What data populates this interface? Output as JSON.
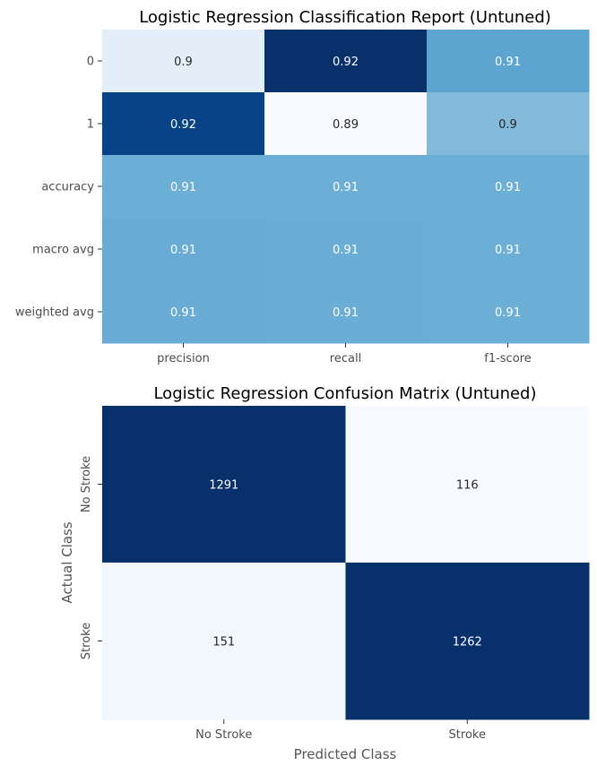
{
  "chart_data": [
    {
      "type": "heatmap",
      "title": "Logistic Regression Classification Report (Untuned)",
      "rows": [
        "0",
        "1",
        "accuracy",
        "macro avg",
        "weighted avg"
      ],
      "columns": [
        "precision",
        "recall",
        "f1-score"
      ],
      "values": [
        [
          0.9,
          0.92,
          0.91
        ],
        [
          0.92,
          0.89,
          0.9
        ],
        [
          0.91,
          0.91,
          0.91
        ],
        [
          0.91,
          0.91,
          0.91
        ],
        [
          0.91,
          0.91,
          0.91
        ]
      ],
      "value_labels": [
        [
          "0.9",
          "0.92",
          "0.91"
        ],
        [
          "0.92",
          "0.89",
          "0.9"
        ],
        [
          "0.91",
          "0.91",
          "0.91"
        ],
        [
          "0.91",
          "0.91",
          "0.91"
        ],
        [
          "0.91",
          "0.91",
          "0.91"
        ]
      ],
      "cells": [
        {
          "row": 0,
          "col": 0,
          "label": "0.9",
          "fill": "#e3eef9",
          "text": "#262626"
        },
        {
          "row": 0,
          "col": 1,
          "label": "0.92",
          "fill": "#08306b",
          "text": "#ffffff"
        },
        {
          "row": 0,
          "col": 2,
          "label": "0.91",
          "fill": "#5da5d1",
          "text": "#ffffff"
        },
        {
          "row": 1,
          "col": 0,
          "label": "0.92",
          "fill": "#084387",
          "text": "#ffffff"
        },
        {
          "row": 1,
          "col": 1,
          "label": "0.89",
          "fill": "#f7fbff",
          "text": "#262626"
        },
        {
          "row": 1,
          "col": 2,
          "label": "0.9",
          "fill": "#83b9da",
          "text": "#262626"
        },
        {
          "row": 2,
          "col": 0,
          "label": "0.91",
          "fill": "#6baed6",
          "text": "#ffffff"
        },
        {
          "row": 2,
          "col": 1,
          "label": "0.91",
          "fill": "#6baed6",
          "text": "#ffffff"
        },
        {
          "row": 2,
          "col": 2,
          "label": "0.91",
          "fill": "#6baed6",
          "text": "#ffffff"
        },
        {
          "row": 3,
          "col": 0,
          "label": "0.91",
          "fill": "#68acd5",
          "text": "#ffffff"
        },
        {
          "row": 3,
          "col": 1,
          "label": "0.91",
          "fill": "#6aadd5",
          "text": "#ffffff"
        },
        {
          "row": 3,
          "col": 2,
          "label": "0.91",
          "fill": "#6baed6",
          "text": "#ffffff"
        },
        {
          "row": 4,
          "col": 0,
          "label": "0.91",
          "fill": "#68acd5",
          "text": "#ffffff"
        },
        {
          "row": 4,
          "col": 1,
          "label": "0.91",
          "fill": "#6aadd5",
          "text": "#ffffff"
        },
        {
          "row": 4,
          "col": 2,
          "label": "0.91",
          "fill": "#6baed6",
          "text": "#ffffff"
        }
      ],
      "colormap": "Blues",
      "colorbar": false
    },
    {
      "type": "heatmap",
      "title": "Logistic Regression Confusion Matrix (Untuned)",
      "xlabel": "Predicted Class",
      "ylabel": "Actual Class",
      "rows": [
        "No Stroke",
        "Stroke"
      ],
      "columns": [
        "No Stroke",
        "Stroke"
      ],
      "values": [
        [
          1291,
          116
        ],
        [
          151,
          1262
        ]
      ],
      "value_labels": [
        [
          "1291",
          "116"
        ],
        [
          "151",
          "1262"
        ]
      ],
      "cells": [
        {
          "row": 0,
          "col": 0,
          "label": "1291",
          "fill": "#08306b",
          "text": "#ffffff"
        },
        {
          "row": 0,
          "col": 1,
          "label": "116",
          "fill": "#f7fbff",
          "text": "#262626"
        },
        {
          "row": 1,
          "col": 0,
          "label": "151",
          "fill": "#f1f7fd",
          "text": "#262626"
        },
        {
          "row": 1,
          "col": 1,
          "label": "1262",
          "fill": "#08306b",
          "text": "#ffffff"
        }
      ],
      "colormap": "Blues",
      "colorbar": false
    }
  ]
}
